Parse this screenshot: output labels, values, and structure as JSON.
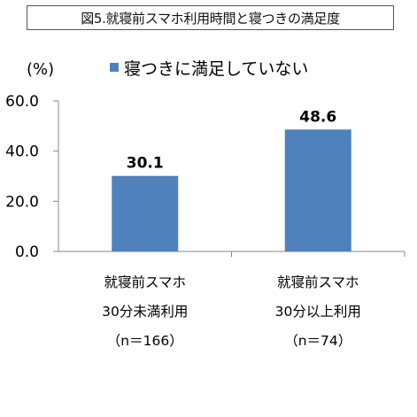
{
  "title": "図5.就寝前スマホ利用時間と寝つきの満足度",
  "chart_data": {
    "type": "bar",
    "unit_label": "(%)",
    "categories": [
      [
        "就寝前スマホ",
        "30分未満利用",
        "（n＝166）"
      ],
      [
        "就寝前スマホ",
        "30分以上利用",
        "（n＝74）"
      ]
    ],
    "series": [
      {
        "name": "寝つきに満足していない",
        "values": [
          30.1,
          48.6
        ],
        "color": "#4f81bd"
      }
    ],
    "data_labels": [
      "30.1",
      "48.6"
    ],
    "ylim": [
      0,
      60
    ],
    "yticks": [
      0,
      20,
      40,
      60
    ],
    "ytick_labels": [
      "0.0",
      "20.0",
      "40.0",
      "60.0"
    ],
    "legend_position": "top",
    "grid": false
  }
}
